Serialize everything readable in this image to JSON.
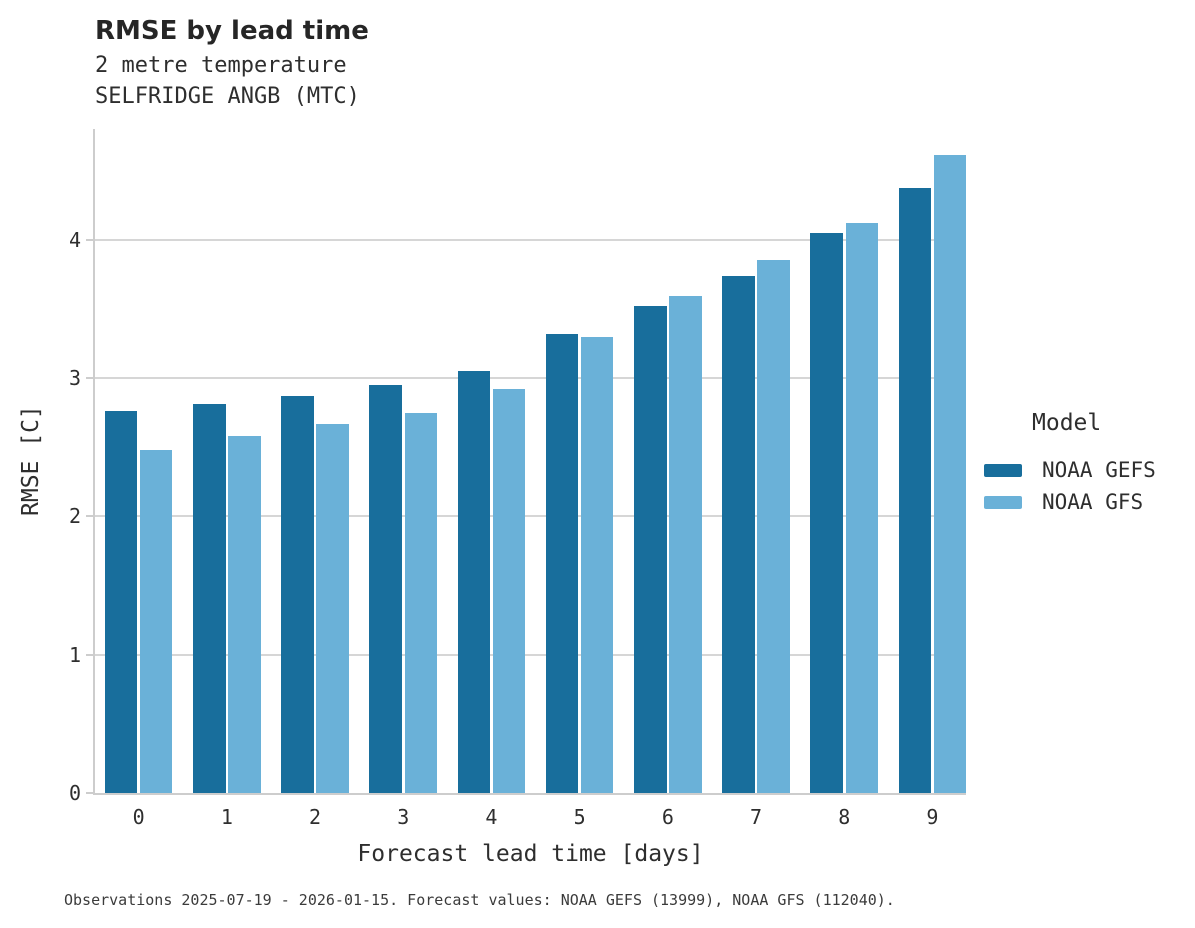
{
  "header": {
    "title": "RMSE by lead time",
    "subtitle_line1": "2 metre temperature",
    "subtitle_line2": "SELFRIDGE ANGB (MTC)"
  },
  "legend": {
    "title": "Model",
    "items": [
      {
        "label": "NOAA GEFS",
        "color": "#186e9c"
      },
      {
        "label": "NOAA GFS",
        "color": "#6ab1d8"
      }
    ]
  },
  "footer": {
    "caption": "Observations 2025-07-19 - 2026-01-15. Forecast values: NOAA GEFS (13999), NOAA GFS (112040)."
  },
  "chart_data": {
    "type": "bar",
    "title": "RMSE by lead time",
    "subtitle": "2 metre temperature — SELFRIDGE ANGB (MTC)",
    "xlabel": "Forecast lead time [days]",
    "ylabel": "RMSE [C]",
    "categories": [
      "0",
      "1",
      "2",
      "3",
      "4",
      "5",
      "6",
      "7",
      "8",
      "9"
    ],
    "yticks": [
      0,
      1,
      2,
      3,
      4
    ],
    "ylim": [
      0,
      4.8
    ],
    "grid": "horizontal",
    "legend_position": "center-right",
    "background": "#ffffff",
    "gridline_color": "#d6d6d6",
    "spine_color": "#cdcdcd",
    "series": [
      {
        "name": "NOAA GEFS",
        "color": "#186e9c",
        "values": [
          2.76,
          2.81,
          2.87,
          2.95,
          3.05,
          3.32,
          3.52,
          3.74,
          4.05,
          4.37
        ]
      },
      {
        "name": "NOAA GFS",
        "color": "#6ab1d8",
        "values": [
          2.48,
          2.58,
          2.67,
          2.75,
          2.92,
          3.3,
          3.59,
          3.85,
          4.12,
          4.61
        ]
      }
    ]
  }
}
